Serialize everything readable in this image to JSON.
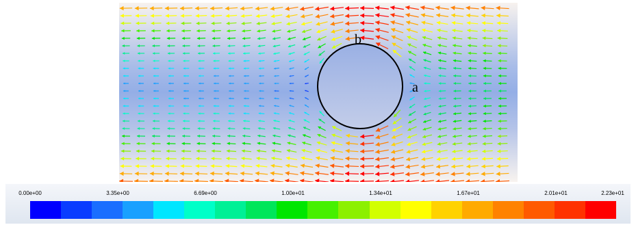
{
  "figure": {
    "point_a_label": "a",
    "point_b_label": "b"
  },
  "colorbar": {
    "tick_labels": [
      "0.00e+00",
      "3.35e+00",
      "6.69e+00",
      "1.00e+01",
      "1.34e+01",
      "1.67e+01",
      "2.01e+01",
      "2.23e+01"
    ],
    "min": 0,
    "max": 22.3,
    "colors": [
      "#0000ff",
      "#0a3cff",
      "#1a6eff",
      "#19a0ff",
      "#00e6ff",
      "#00ffc8",
      "#00f096",
      "#00e65a",
      "#00e600",
      "#46f000",
      "#8cf000",
      "#d2ff00",
      "#ffff00",
      "#ffd200",
      "#ffaa00",
      "#ff8200",
      "#ff5a00",
      "#ff3200",
      "#ff0000"
    ]
  }
}
